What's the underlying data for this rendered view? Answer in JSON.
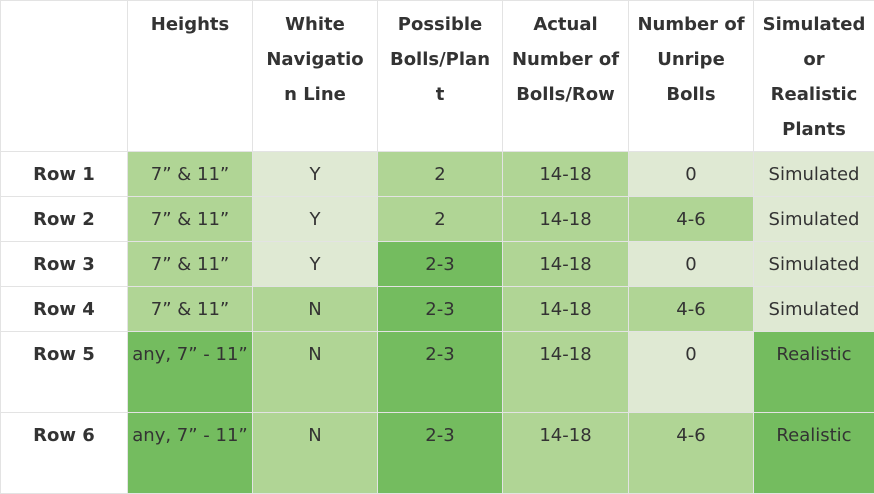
{
  "table": {
    "headers": [
      "",
      "Heights",
      "White Navigation Line",
      "Possible Bolls/Plant",
      "Actual Number of Bolls/Row",
      "Number of Unripe Bolls",
      "Simulated or Realistic Plants"
    ],
    "header_display": [
      "",
      "Heights",
      "White\nNavigatio\nn Line",
      "Possible\nBolls/Plan\nt",
      "Actual\nNumber of\nBolls/Row",
      "Number of\nUnripe\nBolls",
      "Simulated\nor\nRealistic\nPlants"
    ],
    "rows": [
      {
        "label": "Row 1",
        "cells": [
          "7” & 11”",
          "Y",
          "2",
          "14-18",
          "0",
          "Simulated"
        ]
      },
      {
        "label": "Row 2",
        "cells": [
          "7” & 11”",
          "Y",
          "2",
          "14-18",
          "4-6",
          "Simulated"
        ]
      },
      {
        "label": "Row 3",
        "cells": [
          "7” & 11”",
          "Y",
          "2-3",
          "14-18",
          "0",
          "Simulated"
        ]
      },
      {
        "label": "Row 4",
        "cells": [
          "7” & 11”",
          "N",
          "2-3",
          "14-18",
          "4-6",
          "Simulated"
        ]
      },
      {
        "label": "Row 5",
        "cells": [
          "any, 7” - 11”",
          "N",
          "2-3",
          "14-18",
          "0",
          "Realistic"
        ]
      },
      {
        "label": "Row 6",
        "cells": [
          "any, 7” - 11”",
          "N",
          "2-3",
          "14-18",
          "4-6",
          "Realistic"
        ]
      }
    ]
  },
  "colors": {
    "light": "#dfe9d3",
    "mid": "#b0d595",
    "dark": "#74bc5f",
    "border": "#e3e3e3"
  }
}
